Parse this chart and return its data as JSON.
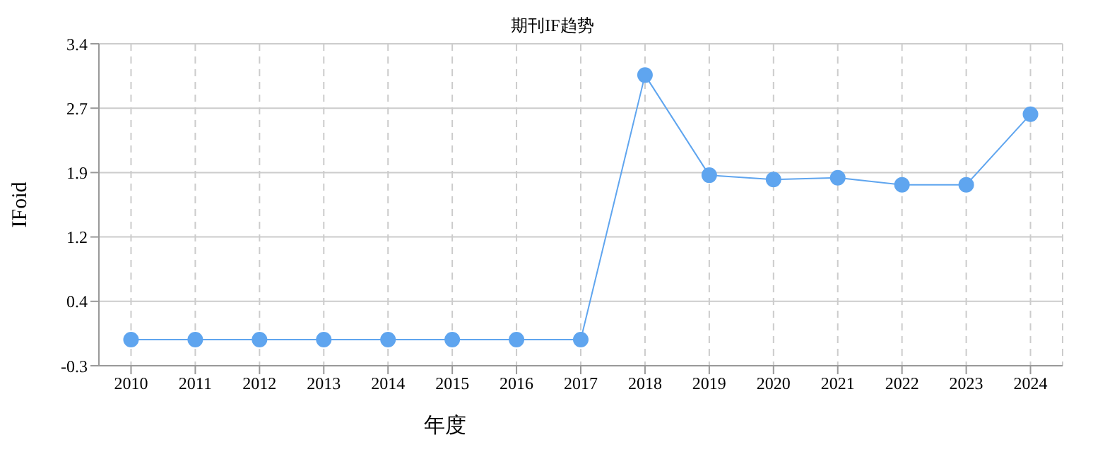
{
  "chart_data": {
    "type": "line",
    "title": "期刊IF趋势",
    "xlabel": "年度",
    "ylabel": "IFoid",
    "categories": [
      "2010",
      "2011",
      "2012",
      "2013",
      "2014",
      "2015",
      "2016",
      "2017",
      "2018",
      "2019",
      "2020",
      "2021",
      "2022",
      "2023",
      "2024"
    ],
    "series": [
      {
        "color": "#5fa5ef",
        "values": [
          0,
          0,
          0,
          0,
          0,
          0,
          0,
          0,
          3.04,
          1.89,
          1.84,
          1.86,
          1.78,
          1.78,
          2.59
        ]
      }
    ],
    "ylim": [
      -0.3,
      3.4
    ],
    "yticks": [
      -0.3,
      {
        "value": 0.44,
        "label": "0.4"
      },
      {
        "value": 1.18,
        "label": "1.2"
      },
      {
        "value": 1.92,
        "label": "1.9"
      },
      {
        "value": 2.66,
        "label": "2.7"
      },
      3.4
    ],
    "grid": true,
    "marker": "circle",
    "line_style": "solid"
  }
}
